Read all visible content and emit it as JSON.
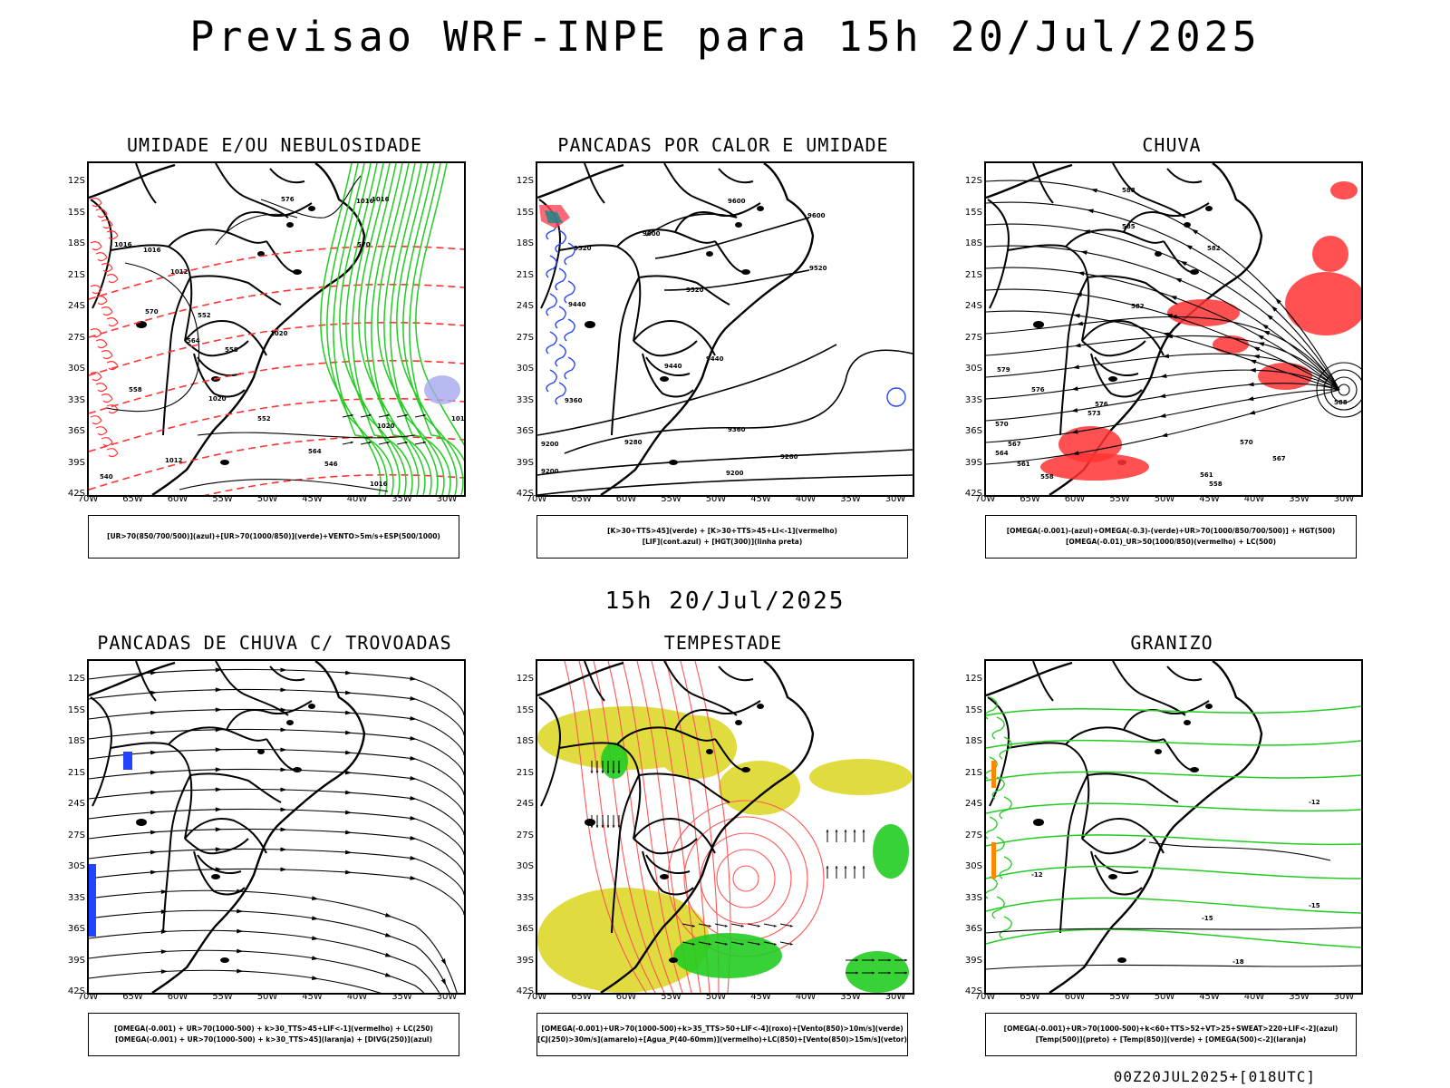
{
  "title": "Previsao WRF-INPE  para 15h 20/Jul/2025",
  "subtitle": "15h 20/Jul/2025",
  "footer": "00Z20JUL2025+[018UTC]",
  "lat_labels": [
    "12S",
    "15S",
    "18S",
    "21S",
    "24S",
    "27S",
    "30S",
    "33S",
    "36S",
    "39S",
    "42S"
  ],
  "lon_labels": [
    "70W",
    "65W",
    "60W",
    "55W",
    "50W",
    "45W",
    "40W",
    "35W",
    "30W"
  ],
  "panels": [
    {
      "title": "UMIDADE E/OU NEBULOSIDADE",
      "legend": [
        "[UR>70(850/700/500)](azul)+[UR>70(1000/850)](verde)+VENTO>5m/s+ESP(500/1000)"
      ]
    },
    {
      "title": "PANCADAS POR CALOR E UMIDADE",
      "legend": [
        "[K>30+TTS>45](verde) + [K>30+TTS>45+LI<-1](vermelho)",
        "[LIF](cont.azul) + [HGT(300)](linha preta)"
      ]
    },
    {
      "title": "CHUVA",
      "legend": [
        "[OMEGA(-0.001)-(azul)+OMEGA(-0.3)-(verde)+UR>70(1000/850/700/500)] + HGT(500)",
        "[OMEGA(-0.01)_UR>50(1000/850)(vermelho) + LC(500)"
      ]
    },
    {
      "title": "PANCADAS DE CHUVA C/ TROVOADAS",
      "legend": [
        "[OMEGA(-0.001) + UR>70(1000-500) + k>30_TTS>45+LIF<-1](vermelho) + LC(250)",
        "[OMEGA(-0.001) + UR>70(1000-500) + k>30_TTS>45](laranja) + [DIVG(250)](azul)"
      ]
    },
    {
      "title": "TEMPESTADE",
      "legend": [
        "[OMEGA(-0.001)+UR>70(1000-500)+k>35_TTS>50+LIF<-4](roxo)+[Vento(850)>10m/s](verde)",
        "[CJ(250)>30m/s](amarelo)+[Agua_P(40-60mm)](vermelho)+LC(850)+[Vento(850)>15m/s](vetor)"
      ]
    },
    {
      "title": "GRANIZO",
      "legend": [
        "[OMEGA(-0.001)+UR>70(1000-500)+k<60+TTS>52+VT>25+SWEAT>220+LIF<-2](azul)",
        "[Temp(500)](preto) + [Temp(850)](verde) + [OMEGA(500)<-2](laranja)"
      ]
    }
  ],
  "contour_labels": {
    "p1": [
      "1016",
      "1016",
      "1012",
      "1016",
      "1020",
      "1020",
      "1020",
      "1016",
      "1016",
      "1012",
      "1016",
      "576",
      "570",
      "564",
      "558",
      "552",
      "546",
      "540",
      "570",
      "564",
      "558",
      "552"
    ],
    "p2": [
      "9600",
      "9600",
      "9520",
      "9520",
      "9600",
      "9520",
      "9440",
      "9440",
      "9440",
      "9360",
      "9360",
      "9280",
      "9280",
      "9200",
      "9200",
      "9200"
    ],
    "p3": [
      "588",
      "585",
      "582",
      "582",
      "579",
      "576",
      "576",
      "573",
      "570",
      "570",
      "567",
      "564",
      "561",
      "558",
      "567",
      "561",
      "558",
      "588"
    ],
    "p6": [
      "-12",
      "-12",
      "-15",
      "-15",
      "-18"
    ]
  },
  "colors": {
    "green": "#22cc22",
    "red": "#ff3333",
    "blue": "#2244ff",
    "yellow": "#e0dc40",
    "lightblue": "#a8a8ee",
    "orange": "#ff8800",
    "teal": "#118888",
    "black": "#000000"
  }
}
